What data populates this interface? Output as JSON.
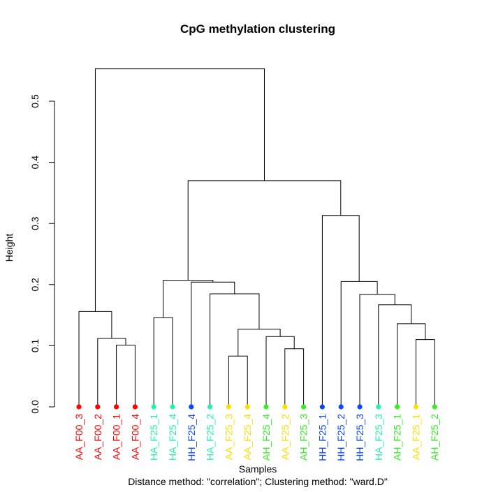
{
  "chart_data": {
    "type": "dendrogram",
    "title": "CpG methylation clustering",
    "xlabel": "Samples",
    "ylabel": "Height",
    "subtitle": "Distance method: \"correlation\"; Clustering method: \"ward.D\"",
    "ylim": [
      0,
      0.55
    ],
    "yticks": [
      0.0,
      0.1,
      0.2,
      0.3,
      0.4,
      0.5
    ],
    "ytick_labels": [
      "0.0",
      "0.1",
      "0.2",
      "0.3",
      "0.4",
      "0.5"
    ],
    "leaves": [
      {
        "label": "AA_F00_3",
        "color": "#ff0000"
      },
      {
        "label": "AA_F00_2",
        "color": "#ff0000"
      },
      {
        "label": "AA_F00_1",
        "color": "#ff0000"
      },
      {
        "label": "AA_F00_4",
        "color": "#ff0000"
      },
      {
        "label": "HA_F25_1",
        "color": "#1ff5a8"
      },
      {
        "label": "HA_F25_4",
        "color": "#1ff5a8"
      },
      {
        "label": "HH_F25_4",
        "color": "#0a47ff"
      },
      {
        "label": "HA_F25_2",
        "color": "#1ff5a8"
      },
      {
        "label": "AA_F25_3",
        "color": "#ffdd00"
      },
      {
        "label": "AA_F25_4",
        "color": "#ffdd00"
      },
      {
        "label": "AH_F25_4",
        "color": "#33ee22"
      },
      {
        "label": "AA_F25_2",
        "color": "#ffdd00"
      },
      {
        "label": "AH_F25_3",
        "color": "#33ee22"
      },
      {
        "label": "HH_F25_1",
        "color": "#0a47ff"
      },
      {
        "label": "HH_F25_2",
        "color": "#0a47ff"
      },
      {
        "label": "HH_F25_3",
        "color": "#0a47ff"
      },
      {
        "label": "HA_F25_3",
        "color": "#1ff5a8"
      },
      {
        "label": "AH_F25_1",
        "color": "#33ee22"
      },
      {
        "label": "AA_F25_1",
        "color": "#ffdd00"
      },
      {
        "label": "AH_F25_2",
        "color": "#33ee22"
      }
    ],
    "merges": [
      {
        "left": 2,
        "right": 3,
        "height": 0.101
      },
      {
        "left": 1,
        "right": -1,
        "height": 0.112
      },
      {
        "left": 0,
        "right": -2,
        "height": 0.156
      },
      {
        "left": 4,
        "right": 5,
        "height": 0.146
      },
      {
        "left": 8,
        "right": 9,
        "height": 0.083
      },
      {
        "left": 11,
        "right": 12,
        "height": 0.095
      },
      {
        "left": 10,
        "right": -6,
        "height": 0.115
      },
      {
        "left": -5,
        "right": -7,
        "height": 0.127
      },
      {
        "left": 7,
        "right": -8,
        "height": 0.185
      },
      {
        "left": 6,
        "right": -9,
        "height": 0.204
      },
      {
        "left": -4,
        "right": -10,
        "height": 0.207
      },
      {
        "left": 18,
        "right": 19,
        "height": 0.11
      },
      {
        "left": 17,
        "right": -12,
        "height": 0.136
      },
      {
        "left": 16,
        "right": -13,
        "height": 0.167
      },
      {
        "left": 15,
        "right": -14,
        "height": 0.184
      },
      {
        "left": 14,
        "right": -15,
        "height": 0.205
      },
      {
        "left": 13,
        "right": -16,
        "height": 0.313
      },
      {
        "left": -11,
        "right": -17,
        "height": 0.37
      },
      {
        "left": -3,
        "right": -18,
        "height": 0.553
      }
    ]
  }
}
